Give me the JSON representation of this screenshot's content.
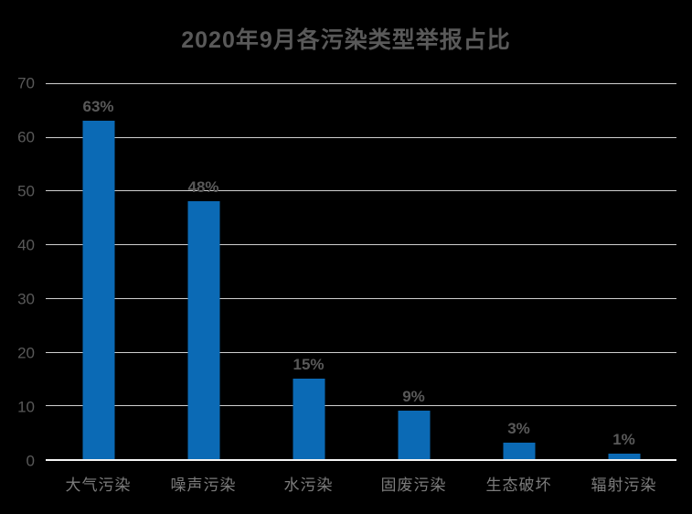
{
  "title": "2020年9月各污染类型举报占比",
  "colors": {
    "background": "#000000",
    "bar": "#0b6ab5",
    "title_text": "#595959",
    "axis_label_text": "#595959",
    "data_label_text": "#595959",
    "category_label_text": "#7c7c7c",
    "gridline": "#cfcfcf",
    "axis_line": "#f5f5f5"
  },
  "chart_data": {
    "type": "bar",
    "title": "2020年9月各污染类型举报占比",
    "categories": [
      "大气污染",
      "噪声污染",
      "水污染",
      "固废污染",
      "生态破坏",
      "辐射污染"
    ],
    "values": [
      63,
      48,
      15,
      9,
      3,
      1
    ],
    "data_labels": [
      "63%",
      "48%",
      "15%",
      "9%",
      "3%",
      "1%"
    ],
    "xlabel": "",
    "ylabel": "",
    "ylim": [
      0,
      70
    ],
    "yticks": [
      0,
      10,
      20,
      30,
      40,
      50,
      60,
      70
    ],
    "grid": true,
    "legend": false
  }
}
